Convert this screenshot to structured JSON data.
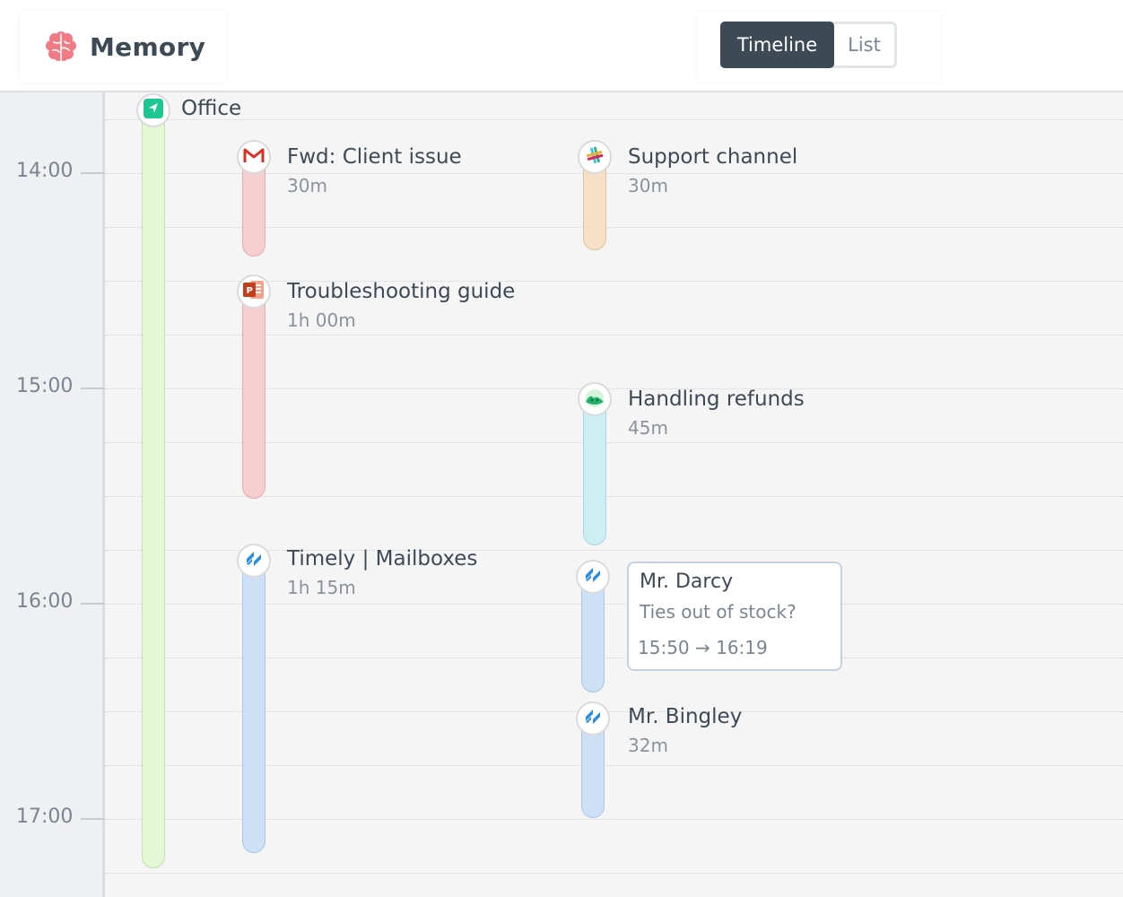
{
  "app": {
    "name": "Memory",
    "logo_icon": "brain-icon",
    "brand_color": "#f07b85"
  },
  "view_toggle": {
    "active_label": "Timeline",
    "inactive_label": "List"
  },
  "timeline": {
    "hours": [
      "14:00",
      "15:00",
      "16:00",
      "17:00"
    ],
    "location": {
      "title": "Office",
      "icon": "location-arrow-icon"
    },
    "events": [
      {
        "id": "fwd-client-issue",
        "title": "Fwd: Client issue",
        "duration": "30m",
        "icon": "gmail-icon",
        "color": "#f5cfd0"
      },
      {
        "id": "support-channel",
        "title": "Support channel",
        "duration": "30m",
        "icon": "slack-icon",
        "color": "#f6e0c7"
      },
      {
        "id": "troubleshooting-guide",
        "title": "Troubleshooting guide",
        "duration": "1h 00m",
        "icon": "powerpoint-icon",
        "color": "#f5cfd0"
      },
      {
        "id": "handling-refunds",
        "title": "Handling refunds",
        "duration": "45m",
        "icon": "basecamp-icon",
        "color": "#cdeef3"
      },
      {
        "id": "timely-mailboxes",
        "title": "Timely | Mailboxes",
        "duration": "1h 15m",
        "icon": "helpscout-icon",
        "color": "#cde0f5"
      },
      {
        "id": "mr-darcy",
        "title": "Mr. Darcy",
        "duration": "",
        "icon": "helpscout-icon",
        "color": "#cde0f5"
      },
      {
        "id": "mr-bingley",
        "title": "Mr. Bingley",
        "duration": "32m",
        "icon": "helpscout-icon",
        "color": "#cde0f5"
      }
    ],
    "detail_card": {
      "title": "Mr. Darcy",
      "subtitle": "Ties out of stock?",
      "time_range": "15:50 → 16:19"
    }
  }
}
